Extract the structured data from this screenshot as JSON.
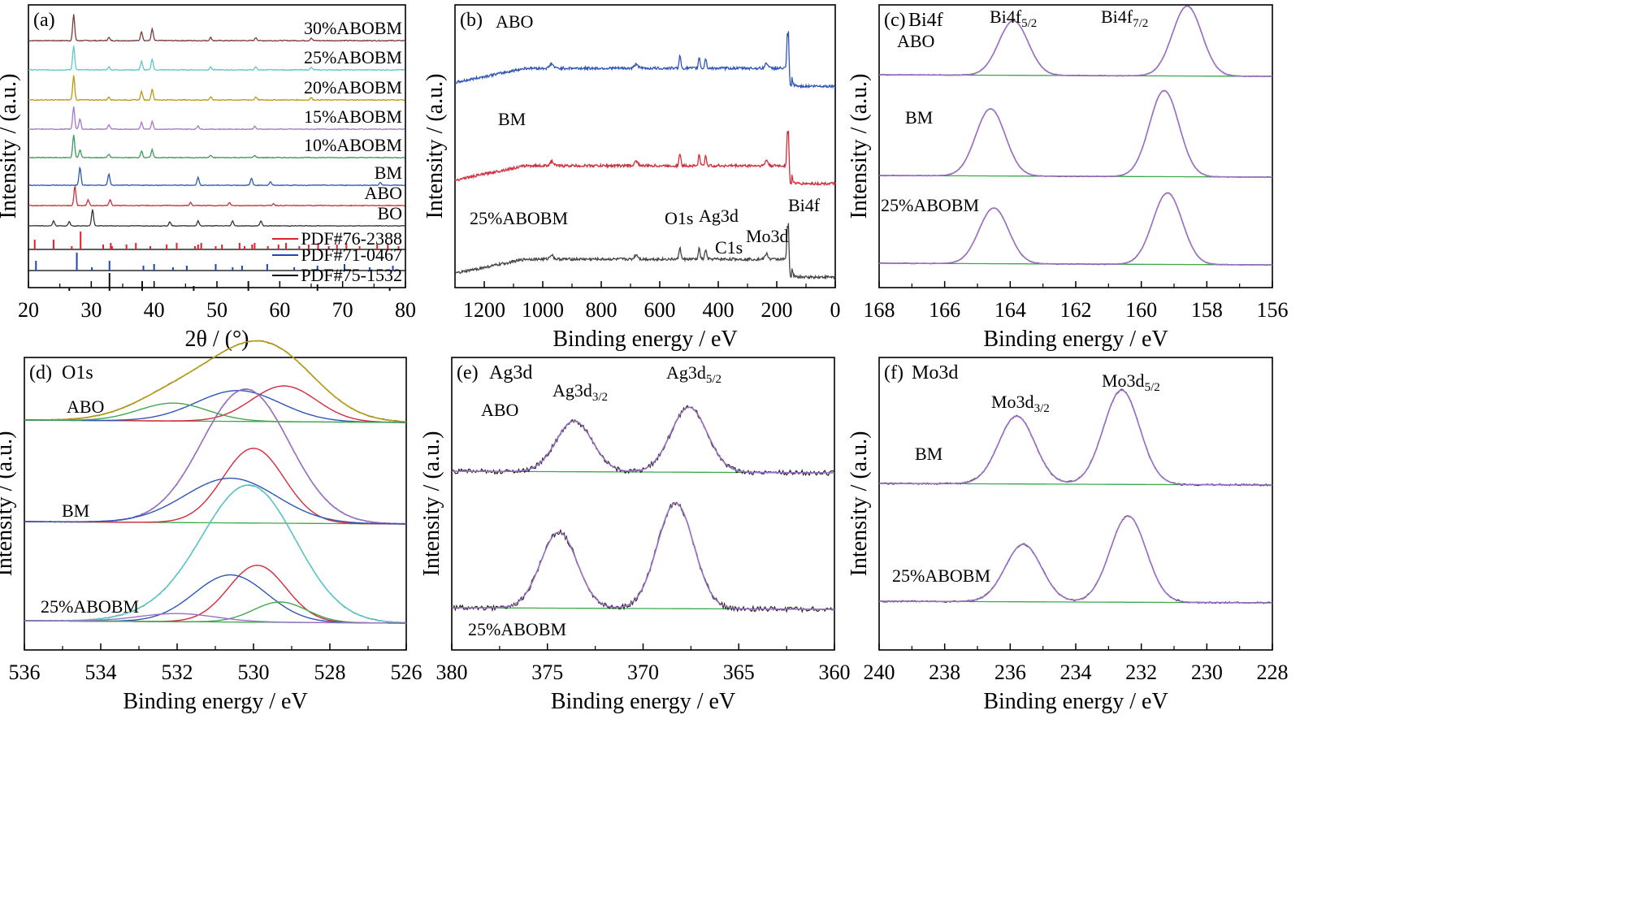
{
  "figure": {
    "panels": [
      {
        "id": "a",
        "tag": "(a)"
      },
      {
        "id": "b",
        "tag": "(b)"
      },
      {
        "id": "c",
        "tag": "(c)"
      },
      {
        "id": "d",
        "tag": "(d)"
      },
      {
        "id": "e",
        "tag": "(e)"
      },
      {
        "id": "f",
        "tag": "(f)"
      }
    ]
  },
  "chart_data": [
    {
      "id": "a",
      "type": "line",
      "xlabel": "2θ / (°)",
      "ylabel": "Intensity / (a.u.)",
      "xlim": [
        20,
        80
      ],
      "xticks": [
        20,
        30,
        40,
        50,
        60,
        70,
        80
      ],
      "series": [
        {
          "name": "30%ABOBM",
          "color": "#7b3b3b",
          "peaks": [
            [
              27.2,
              1.0
            ],
            [
              38.0,
              0.35
            ],
            [
              39.7,
              0.45
            ],
            [
              32.8,
              0.12
            ],
            [
              49.0,
              0.12
            ],
            [
              56.2,
              0.12
            ],
            [
              65.0,
              0.1
            ]
          ]
        },
        {
          "name": "25%ABOBM",
          "color": "#5ec7c9",
          "peaks": [
            [
              27.2,
              1.0
            ],
            [
              38.0,
              0.35
            ],
            [
              39.7,
              0.45
            ],
            [
              32.8,
              0.12
            ],
            [
              49.0,
              0.12
            ],
            [
              56.2,
              0.12
            ],
            [
              65.0,
              0.1
            ]
          ]
        },
        {
          "name": "20%ABOBM",
          "color": "#b89a13",
          "peaks": [
            [
              27.2,
              1.0
            ],
            [
              38.0,
              0.35
            ],
            [
              39.7,
              0.45
            ],
            [
              32.8,
              0.12
            ],
            [
              49.0,
              0.12
            ],
            [
              56.2,
              0.12
            ],
            [
              65.0,
              0.1
            ]
          ]
        },
        {
          "name": "15%ABOBM",
          "color": "#a678c8",
          "peaks": [
            [
              27.2,
              1.0
            ],
            [
              28.2,
              0.45
            ],
            [
              32.8,
              0.2
            ],
            [
              38.0,
              0.3
            ],
            [
              39.7,
              0.35
            ],
            [
              47.0,
              0.15
            ],
            [
              56.0,
              0.12
            ]
          ]
        },
        {
          "name": "10%ABOBM",
          "color": "#3a9a5a",
          "peaks": [
            [
              27.2,
              1.0
            ],
            [
              28.2,
              0.35
            ],
            [
              32.8,
              0.15
            ],
            [
              38.0,
              0.3
            ],
            [
              39.7,
              0.35
            ],
            [
              49.0,
              0.1
            ],
            [
              56.0,
              0.1
            ]
          ]
        },
        {
          "name": "BM",
          "color": "#2f56b5",
          "peaks": [
            [
              28.2,
              1.0
            ],
            [
              32.8,
              0.65
            ],
            [
              47.0,
              0.45
            ],
            [
              55.5,
              0.4
            ],
            [
              58.5,
              0.2
            ],
            [
              76.0,
              0.15
            ]
          ]
        },
        {
          "name": "ABO",
          "color": "#d22c3c",
          "peaks": [
            [
              27.4,
              1.0
            ],
            [
              29.5,
              0.3
            ],
            [
              33.0,
              0.3
            ],
            [
              45.8,
              0.15
            ],
            [
              52.0,
              0.15
            ],
            [
              59.0,
              0.1
            ]
          ]
        },
        {
          "name": "BO",
          "color": "#333333",
          "peaks": [
            [
              30.2,
              1.0
            ],
            [
              24.0,
              0.3
            ],
            [
              26.5,
              0.25
            ],
            [
              42.5,
              0.25
            ],
            [
              47.0,
              0.3
            ],
            [
              52.5,
              0.3
            ],
            [
              57.0,
              0.3
            ]
          ]
        }
      ],
      "references": [
        {
          "name": "PDF#76-2388",
          "color": "#e0202a",
          "lines": [
            28.3,
            21.0,
            24.0,
            26.9,
            31.9,
            33.1,
            33.3,
            35.6,
            37.1,
            39.4,
            42.0,
            43.6,
            46.5,
            47.0,
            47.5,
            49.8,
            50.8,
            53.6,
            54.4,
            55.6,
            56.0,
            58.1,
            59.8,
            61.0,
            63.1,
            64.6,
            66.1,
            67.8,
            69.1,
            70.6,
            72.7,
            75.5,
            77.2,
            78.9
          ]
        },
        {
          "name": "PDF#71-0467",
          "color": "#1e46b8",
          "lines": [
            27.7,
            32.9,
            21.2,
            30.1,
            38.3,
            40.0,
            43.0,
            45.2,
            49.8,
            52.5,
            54.0,
            58.0,
            62.3,
            66.0,
            70.3,
            74.3,
            78.0
          ]
        },
        {
          "name": "PDF#75-1532",
          "color": "#111111",
          "lines": [
            32.9,
            38.1,
            55.0,
            26.5,
            46.3,
            66.0,
            77.5
          ]
        }
      ]
    },
    {
      "id": "b",
      "type": "line",
      "xlabel": "Binding energy / eV",
      "ylabel": "Intensity / (a.u.)",
      "xlim": [
        1300,
        0
      ],
      "xticks": [
        1200,
        1000,
        800,
        600,
        400,
        200,
        0
      ],
      "series": [
        {
          "name": "ABO",
          "color": "#2f56b5"
        },
        {
          "name": "BM",
          "color": "#d22c3c"
        },
        {
          "name": "25%ABOBM",
          "color": "#444444"
        }
      ],
      "annotations": [
        "O1s",
        "Ag3d",
        "C1s",
        "Mo3d",
        "Bi4f"
      ]
    },
    {
      "id": "c",
      "type": "line",
      "title": "Bi4f",
      "xlabel": "Binding energy / eV",
      "ylabel": "Intensity / (a.u.)",
      "xlim": [
        168,
        156
      ],
      "xticks": [
        168,
        166,
        164,
        162,
        160,
        158,
        156
      ],
      "series": [
        {
          "name": "ABO",
          "peaks": [
            163.9,
            158.6
          ]
        },
        {
          "name": "BM",
          "peaks": [
            164.6,
            159.3
          ]
        },
        {
          "name": "25%ABOBM",
          "peaks": [
            164.5,
            159.2
          ]
        }
      ],
      "peak_labels": [
        {
          "text": "Bi4f",
          "sub": "5/2"
        },
        {
          "text": "Bi4f",
          "sub": "7/2"
        }
      ]
    },
    {
      "id": "d",
      "type": "line",
      "title": "O1s",
      "xlabel": "Binding energy / eV",
      "ylabel": "Intensity / (a.u.)",
      "xlim": [
        536,
        526
      ],
      "xticks": [
        536,
        534,
        532,
        530,
        528,
        526
      ],
      "series": [
        {
          "name": "ABO",
          "components": [
            529.2,
            530.4,
            532.1
          ]
        },
        {
          "name": "BM",
          "components": [
            530.0,
            530.6
          ]
        },
        {
          "name": "25%ABOBM",
          "components": [
            529.9,
            530.6,
            529.3,
            532.0
          ]
        }
      ]
    },
    {
      "id": "e",
      "type": "line",
      "title": "Ag3d",
      "xlabel": "Binding energy / eV",
      "ylabel": "Intensity / (a.u.)",
      "xlim": [
        380,
        360
      ],
      "xticks": [
        380,
        375,
        370,
        365,
        360
      ],
      "series": [
        {
          "name": "ABO",
          "peaks": [
            373.6,
            367.6
          ]
        },
        {
          "name": "25%ABOBM",
          "peaks": [
            374.4,
            368.3
          ]
        }
      ],
      "peak_labels": [
        {
          "text": "Ag3d",
          "sub": "3/2"
        },
        {
          "text": "Ag3d",
          "sub": "5/2"
        }
      ]
    },
    {
      "id": "f",
      "type": "line",
      "title": "Mo3d",
      "xlabel": "Binding energy / eV",
      "ylabel": "Intensity / (a.u.)",
      "xlim": [
        240,
        228
      ],
      "xticks": [
        240,
        238,
        236,
        234,
        232,
        230,
        228
      ],
      "series": [
        {
          "name": "BM",
          "peaks": [
            235.8,
            232.6
          ]
        },
        {
          "name": "25%ABOBM",
          "peaks": [
            235.6,
            232.4
          ]
        }
      ],
      "peak_labels": [
        {
          "text": "Mo3d",
          "sub": "3/2"
        },
        {
          "text": "Mo3d",
          "sub": "5/2"
        }
      ]
    }
  ]
}
